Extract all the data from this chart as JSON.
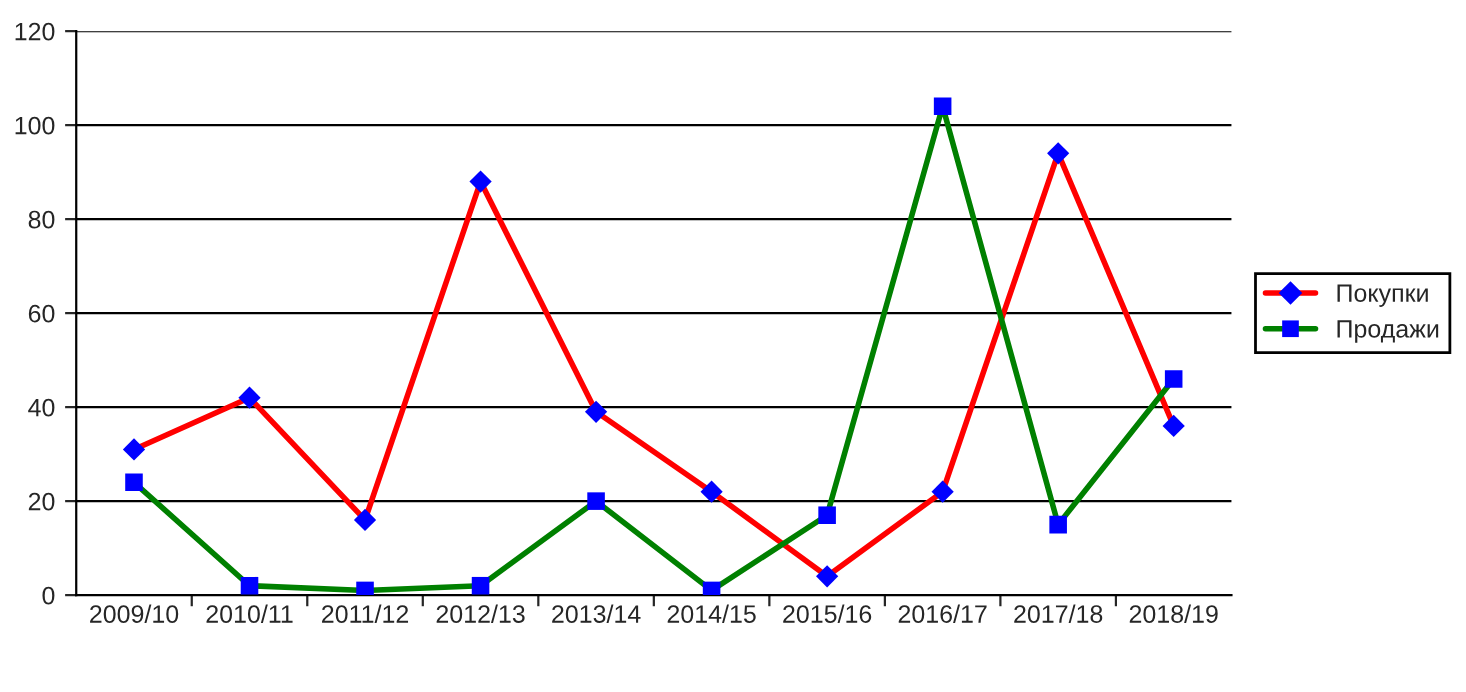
{
  "chart_data": {
    "type": "line",
    "categories": [
      "2009/10",
      "2010/11",
      "2011/12",
      "2012/13",
      "2013/14",
      "2014/15",
      "2015/16",
      "2016/17",
      "2017/18",
      "2018/19"
    ],
    "series": [
      {
        "name": "Покупки",
        "color": "#ff0000",
        "marker": "diamond",
        "colors": [
          "#0000ff",
          "#0000ff",
          "#0000ff",
          "#0000ff",
          "#0000ff",
          "#0000ff",
          "#0000ff",
          "#0000ff",
          "#0000ff",
          "#0000ff"
        ],
        "values": [
          31,
          42,
          16,
          88,
          39,
          22,
          4,
          22,
          94,
          36
        ]
      },
      {
        "name": "Продажи",
        "color": "#008000",
        "marker": "square",
        "colors": [
          "#0000ff",
          "#0000ff",
          "#0000ff",
          "#0000ff",
          "#0000ff",
          "#0000ff",
          "#0000ff",
          "#0000ff",
          "#0000ff",
          "#0000ff"
        ],
        "values": [
          24,
          2,
          1,
          2,
          20,
          1,
          17,
          104,
          15,
          46
        ]
      }
    ],
    "ylim": [
      0,
      120
    ],
    "yticks": [
      0,
      20,
      40,
      60,
      80,
      100,
      120
    ],
    "grid": "y",
    "legend": "right",
    "line_style": "solid"
  }
}
